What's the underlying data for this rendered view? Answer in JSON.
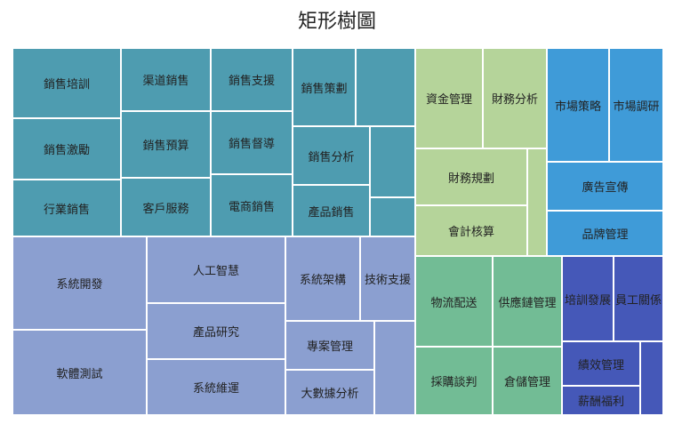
{
  "chart_data": {
    "type": "treemap",
    "title": "矩形樹圖",
    "groups": [
      {
        "id": "sales",
        "color": "#4e9cb0",
        "children": [
          {
            "label": "銷售培訓"
          },
          {
            "label": "銷售激勵"
          },
          {
            "label": "行業銷售"
          },
          {
            "label": "渠道銷售"
          },
          {
            "label": "銷售預算"
          },
          {
            "label": "客戶服務"
          },
          {
            "label": "銷售支援"
          },
          {
            "label": "銷售督導"
          },
          {
            "label": "電商銷售"
          },
          {
            "label": "銷售策劃"
          },
          {
            "label": ""
          },
          {
            "label": "銷售分析"
          },
          {
            "label": ""
          },
          {
            "label": "產品銷售"
          },
          {
            "label": ""
          }
        ]
      },
      {
        "id": "finance",
        "color": "#b5d49a",
        "children": [
          {
            "label": "資金管理"
          },
          {
            "label": "財務分析"
          },
          {
            "label": "財務規劃"
          },
          {
            "label": ""
          },
          {
            "label": "會計核算"
          }
        ]
      },
      {
        "id": "marketing",
        "color": "#3f9bd8",
        "children": [
          {
            "label": "市場策略"
          },
          {
            "label": "市場調研"
          },
          {
            "label": "廣告宣傳"
          },
          {
            "label": "品牌管理"
          }
        ]
      },
      {
        "id": "tech",
        "color": "#8b9fd0",
        "children": [
          {
            "label": "系統開發"
          },
          {
            "label": "軟體測試"
          },
          {
            "label": "人工智慧"
          },
          {
            "label": "產品研究"
          },
          {
            "label": "系統維運"
          },
          {
            "label": "系統架構"
          },
          {
            "label": "技術支援"
          },
          {
            "label": "專案管理"
          },
          {
            "label": "大數據分析"
          },
          {
            "label": ""
          }
        ]
      },
      {
        "id": "operations",
        "color": "#72bc95",
        "children": [
          {
            "label": "物流配送"
          },
          {
            "label": "供應鏈管理"
          },
          {
            "label": "採購談判"
          },
          {
            "label": "倉儲管理"
          }
        ]
      },
      {
        "id": "hr",
        "color": "#4558b8",
        "children": [
          {
            "label": "培訓發展"
          },
          {
            "label": "員工關係"
          },
          {
            "label": "績效管理"
          },
          {
            "label": ""
          },
          {
            "label": "薪酬福利"
          }
        ]
      }
    ]
  }
}
